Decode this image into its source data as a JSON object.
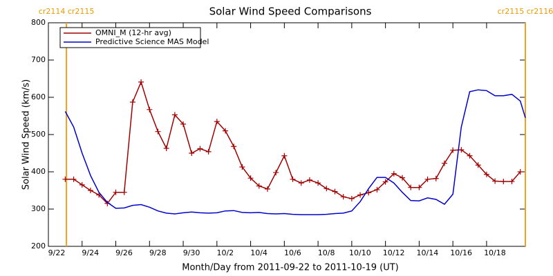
{
  "chart_data": {
    "type": "line",
    "title": "Solar Wind Speed Comparisons",
    "xlabel": "Month/Day from 2011-09-22 to 2011-10-19 (UT)",
    "ylabel": "Solar Wind Speed (km/s)",
    "xlim": [
      0,
      28.3
    ],
    "ylim": [
      200,
      800
    ],
    "xticks": [
      {
        "value": 0,
        "label": "9/22"
      },
      {
        "value": 2,
        "label": "9/24"
      },
      {
        "value": 4,
        "label": "9/26"
      },
      {
        "value": 6,
        "label": "9/28"
      },
      {
        "value": 8,
        "label": "9/30"
      },
      {
        "value": 10,
        "label": "10/2"
      },
      {
        "value": 12,
        "label": "10/4"
      },
      {
        "value": 14,
        "label": "10/6"
      },
      {
        "value": 16,
        "label": "10/8"
      },
      {
        "value": 18,
        "label": "10/10"
      },
      {
        "value": 20,
        "label": "10/12"
      },
      {
        "value": 22,
        "label": "10/14"
      },
      {
        "value": 24,
        "label": "10/16"
      },
      {
        "value": 26,
        "label": "10/18"
      }
    ],
    "yticks": [
      200,
      300,
      400,
      500,
      600,
      700,
      800
    ],
    "legend": "upper left",
    "annotations": [
      {
        "x": 1.07,
        "text": "cr2114 cr2115"
      },
      {
        "x": 28.3,
        "text": "cr2115 cr2116"
      }
    ],
    "series": [
      {
        "name": "OMNI_M (12-hr avg)",
        "color": "#a00000",
        "markers": true,
        "x": [
          1.0,
          1.5,
          2.0,
          2.5,
          3.0,
          3.5,
          4.0,
          4.5,
          5.0,
          5.5,
          6.0,
          6.5,
          7.0,
          7.5,
          8.0,
          8.5,
          9.0,
          9.5,
          10.0,
          10.5,
          11.0,
          11.5,
          12.0,
          12.5,
          13.0,
          13.5,
          14.0,
          14.5,
          15.0,
          15.5,
          16.0,
          16.5,
          17.0,
          17.5,
          18.0,
          18.5,
          19.0,
          19.5,
          20.0,
          20.5,
          21.0,
          21.5,
          22.0,
          22.5,
          23.0,
          23.5,
          24.0,
          24.5,
          25.0,
          25.5,
          26.0,
          26.5,
          27.0,
          27.5,
          28.0
        ],
        "values": [
          380,
          380,
          365,
          350,
          338,
          315,
          345,
          345,
          587,
          641,
          567,
          508,
          463,
          553,
          528,
          450,
          462,
          454,
          535,
          510,
          468,
          413,
          383,
          362,
          354,
          398,
          443,
          380,
          370,
          378,
          370,
          355,
          347,
          333,
          328,
          338,
          344,
          352,
          373,
          395,
          384,
          358,
          358,
          380,
          382,
          423,
          458,
          459,
          443,
          418,
          393,
          375,
          374,
          374,
          400
        ]
      },
      {
        "name": "Predictive Science MAS Model",
        "color": "#0000cc",
        "markers": false,
        "x": [
          1.0,
          1.5,
          2.0,
          2.5,
          3.0,
          3.5,
          4.0,
          4.5,
          5.0,
          5.5,
          6.0,
          6.5,
          7.0,
          7.5,
          8.0,
          8.5,
          9.0,
          9.5,
          10.0,
          10.5,
          11.0,
          11.5,
          12.0,
          12.5,
          13.0,
          13.5,
          14.0,
          14.5,
          15.0,
          15.5,
          16.0,
          16.5,
          17.0,
          17.5,
          18.0,
          18.5,
          19.0,
          19.5,
          20.0,
          20.5,
          21.0,
          21.5,
          22.0,
          22.5,
          23.0,
          23.5,
          24.0,
          24.5,
          25.0,
          25.5,
          26.0,
          26.5,
          27.0,
          27.5,
          28.0,
          28.3
        ],
        "values": [
          562,
          520,
          450,
          390,
          345,
          318,
          302,
          303,
          310,
          312,
          305,
          295,
          289,
          287,
          290,
          292,
          290,
          289,
          290,
          295,
          296,
          291,
          290,
          291,
          288,
          287,
          288,
          286,
          285,
          285,
          285,
          286,
          288,
          289,
          295,
          320,
          355,
          385,
          385,
          370,
          345,
          323,
          322,
          330,
          326,
          313,
          340,
          520,
          615,
          620,
          618,
          604,
          604,
          608,
          590,
          545
        ]
      }
    ]
  }
}
